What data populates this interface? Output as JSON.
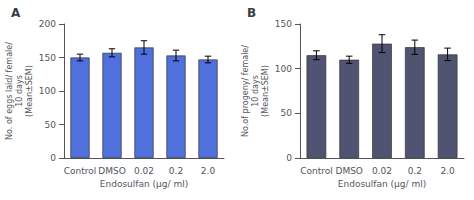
{
  "chart_data": [
    {
      "type": "bar",
      "title": "A",
      "categories": [
        "Control",
        "DMSO",
        "0.02",
        "0.2",
        "2.0"
      ],
      "values": [
        150,
        157,
        165,
        153,
        147
      ],
      "errors": [
        5,
        6,
        10,
        8,
        5
      ],
      "ylabel": "No. of eggs laid/ female/\n10 days\n(Mean±SEM)",
      "xlabel": "Endosulfan (µg/ ml)",
      "ylim": [
        0,
        200
      ],
      "yticks": [
        0,
        50,
        100,
        150,
        200
      ],
      "grid": false
    },
    {
      "type": "bar",
      "title": "B",
      "categories": [
        "Control",
        "DMSO",
        "0.02",
        "0.2",
        "2.0"
      ],
      "values": [
        115,
        110,
        128,
        124,
        116
      ],
      "errors": [
        5,
        4,
        10,
        8,
        7
      ],
      "ylabel": "No.of progeny/ female/\n10 days\n(Mean±SEM)",
      "xlabel": "Endosulfan (µg/ ml)",
      "ylim": [
        0,
        150
      ],
      "yticks": [
        0,
        50,
        100,
        150
      ],
      "grid": false
    }
  ]
}
